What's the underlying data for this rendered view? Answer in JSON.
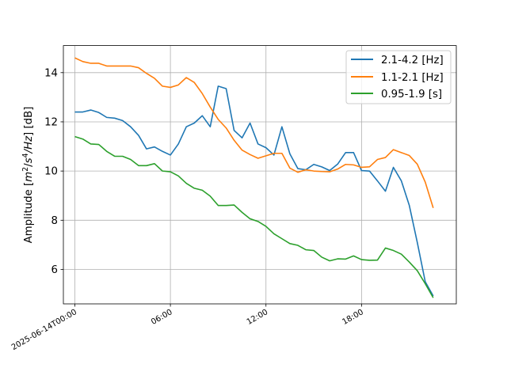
{
  "chart_data": {
    "type": "line",
    "title": "",
    "xlabel": "",
    "ylabel_main": "Amplitude [",
    "ylabel_unit_m": "m",
    "ylabel_unit_m_exp": "2",
    "ylabel_unit_sep": "/",
    "ylabel_unit_s": "s",
    "ylabel_unit_s_exp": "4",
    "ylabel_unit_hz": "/Hz",
    "ylabel_tail": "] [dB]",
    "x_unit": "hours since 2025-06-14T00:00",
    "xlim": [
      -0.72,
      23.95
    ],
    "ylim": [
      4.6,
      15.1
    ],
    "grid": true,
    "legend_position": "top-right",
    "x_ticks": [
      {
        "value": 0,
        "label": "2025-06-14T00:00"
      },
      {
        "value": 6,
        "label": "06:00"
      },
      {
        "value": 12,
        "label": "12:00"
      },
      {
        "value": 18,
        "label": "18:00"
      }
    ],
    "y_ticks": [
      {
        "value": 6,
        "label": "6"
      },
      {
        "value": 8,
        "label": "8"
      },
      {
        "value": 10,
        "label": "10"
      },
      {
        "value": 12,
        "label": "12"
      },
      {
        "value": 14,
        "label": "14"
      }
    ],
    "x": [
      0,
      0.5,
      1,
      1.5,
      2,
      2.5,
      3,
      3.5,
      4,
      4.5,
      5,
      5.5,
      6,
      6.5,
      7,
      7.5,
      8,
      8.5,
      9,
      9.5,
      10,
      10.5,
      11,
      11.5,
      12,
      12.5,
      13,
      13.5,
      14,
      14.5,
      15,
      15.5,
      16,
      16.5,
      17,
      17.5,
      18,
      18.5,
      19,
      19.5,
      20,
      20.5,
      21,
      21.5,
      22,
      22.5
    ],
    "series": [
      {
        "name": "2.1-4.2 [Hz]",
        "color": "#1f77b4",
        "values": [
          12.4,
          12.4,
          12.48,
          12.38,
          12.18,
          12.15,
          12.05,
          11.8,
          11.45,
          10.9,
          10.98,
          10.8,
          10.65,
          11.1,
          11.8,
          11.95,
          12.25,
          11.8,
          13.45,
          13.35,
          11.65,
          11.35,
          11.95,
          11.1,
          10.95,
          10.65,
          11.8,
          10.7,
          10.1,
          10.05,
          10.27,
          10.17,
          10.02,
          10.28,
          10.75,
          10.75,
          10.02,
          10.0,
          9.6,
          9.18,
          10.15,
          9.6,
          8.6,
          7.1,
          5.5,
          4.92
        ]
      },
      {
        "name": "1.1-2.1 [Hz]",
        "color": "#ff7f0e",
        "values": [
          14.6,
          14.45,
          14.38,
          14.38,
          14.27,
          14.27,
          14.27,
          14.27,
          14.2,
          13.97,
          13.77,
          13.45,
          13.4,
          13.5,
          13.8,
          13.6,
          13.15,
          12.6,
          12.1,
          11.75,
          11.25,
          10.85,
          10.67,
          10.52,
          10.62,
          10.72,
          10.72,
          10.12,
          9.95,
          10.05,
          10.0,
          9.98,
          9.97,
          10.08,
          10.27,
          10.25,
          10.15,
          10.17,
          10.47,
          10.55,
          10.87,
          10.75,
          10.63,
          10.28,
          9.55,
          8.5
        ]
      },
      {
        "name": "0.95-1.9 [s]",
        "color": "#2ca02c",
        "values": [
          11.4,
          11.3,
          11.1,
          11.08,
          10.8,
          10.6,
          10.6,
          10.47,
          10.22,
          10.22,
          10.3,
          10.0,
          9.97,
          9.8,
          9.5,
          9.3,
          9.22,
          8.98,
          8.6,
          8.6,
          8.62,
          8.32,
          8.06,
          7.95,
          7.75,
          7.45,
          7.25,
          7.05,
          6.98,
          6.8,
          6.77,
          6.5,
          6.35,
          6.43,
          6.42,
          6.55,
          6.4,
          6.37,
          6.38,
          6.87,
          6.77,
          6.62,
          6.3,
          5.95,
          5.42,
          4.85
        ]
      }
    ]
  }
}
